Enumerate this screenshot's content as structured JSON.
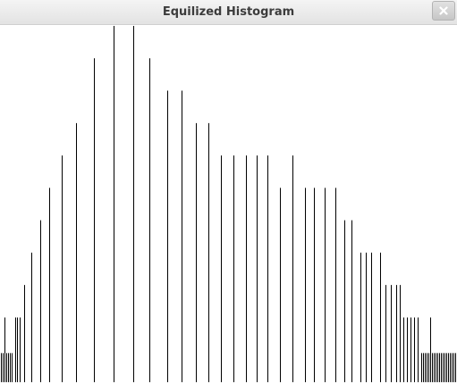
{
  "window": {
    "title": "Equilized Histogram"
  },
  "icons": {
    "close": "close-icon"
  },
  "colors": {
    "bar": "#000000",
    "background": "#ffffff"
  },
  "chart_data": {
    "type": "bar",
    "title": "",
    "xlabel": "",
    "ylabel": "",
    "bars": [
      {
        "x": 1,
        "y": 9
      },
      {
        "x": 3,
        "y": 9
      },
      {
        "x": 5,
        "y": 20
      },
      {
        "x": 7,
        "y": 9
      },
      {
        "x": 9,
        "y": 9
      },
      {
        "x": 11,
        "y": 9
      },
      {
        "x": 13,
        "y": 9
      },
      {
        "x": 17,
        "y": 20
      },
      {
        "x": 19,
        "y": 20
      },
      {
        "x": 22,
        "y": 20
      },
      {
        "x": 27,
        "y": 30
      },
      {
        "x": 35,
        "y": 40
      },
      {
        "x": 45,
        "y": 50
      },
      {
        "x": 55,
        "y": 60
      },
      {
        "x": 69,
        "y": 70
      },
      {
        "x": 85,
        "y": 80
      },
      {
        "x": 105,
        "y": 100
      },
      {
        "x": 127,
        "y": 110
      },
      {
        "x": 149,
        "y": 110
      },
      {
        "x": 167,
        "y": 100
      },
      {
        "x": 187,
        "y": 90
      },
      {
        "x": 203,
        "y": 90
      },
      {
        "x": 219,
        "y": 80
      },
      {
        "x": 233,
        "y": 80
      },
      {
        "x": 247,
        "y": 70
      },
      {
        "x": 261,
        "y": 70
      },
      {
        "x": 275,
        "y": 70
      },
      {
        "x": 287,
        "y": 70
      },
      {
        "x": 299,
        "y": 70
      },
      {
        "x": 313,
        "y": 60
      },
      {
        "x": 327,
        "y": 70
      },
      {
        "x": 341,
        "y": 60
      },
      {
        "x": 351,
        "y": 60
      },
      {
        "x": 363,
        "y": 60
      },
      {
        "x": 375,
        "y": 60
      },
      {
        "x": 385,
        "y": 50
      },
      {
        "x": 393,
        "y": 50
      },
      {
        "x": 403,
        "y": 40
      },
      {
        "x": 409,
        "y": 40
      },
      {
        "x": 415,
        "y": 40
      },
      {
        "x": 425,
        "y": 40
      },
      {
        "x": 431,
        "y": 30
      },
      {
        "x": 437,
        "y": 30
      },
      {
        "x": 443,
        "y": 30
      },
      {
        "x": 447,
        "y": 30
      },
      {
        "x": 451,
        "y": 20
      },
      {
        "x": 455,
        "y": 20
      },
      {
        "x": 459,
        "y": 20
      },
      {
        "x": 463,
        "y": 20
      },
      {
        "x": 467,
        "y": 20
      },
      {
        "x": 471,
        "y": 9
      },
      {
        "x": 473,
        "y": 9
      },
      {
        "x": 475,
        "y": 9
      },
      {
        "x": 477,
        "y": 9
      },
      {
        "x": 479,
        "y": 9
      },
      {
        "x": 481,
        "y": 20
      },
      {
        "x": 483,
        "y": 9
      },
      {
        "x": 485,
        "y": 9
      },
      {
        "x": 487,
        "y": 9
      },
      {
        "x": 489,
        "y": 9
      },
      {
        "x": 491,
        "y": 9
      },
      {
        "x": 493,
        "y": 9
      },
      {
        "x": 495,
        "y": 9
      },
      {
        "x": 497,
        "y": 9
      },
      {
        "x": 499,
        "y": 9
      },
      {
        "x": 501,
        "y": 9
      },
      {
        "x": 503,
        "y": 9
      },
      {
        "x": 505,
        "y": 9
      },
      {
        "x": 507,
        "y": 9
      },
      {
        "x": 509,
        "y": 9
      }
    ],
    "xlim": [
      0,
      511
    ],
    "ylim": [
      0,
      110
    ],
    "grid": false,
    "legend": "none"
  }
}
